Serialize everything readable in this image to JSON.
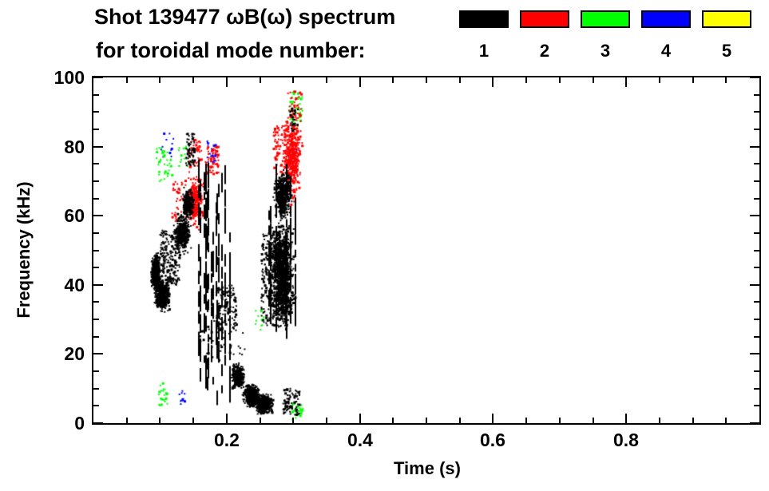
{
  "title": {
    "line1": "Shot 139477 ωB(ω) spectrum",
    "line2": "for toroidal mode number:"
  },
  "legend": {
    "modes": [
      {
        "label": "1",
        "color": "#000000"
      },
      {
        "label": "2",
        "color": "#ff0000"
      },
      {
        "label": "3",
        "color": "#00ff00"
      },
      {
        "label": "4",
        "color": "#0000ff"
      },
      {
        "label": "5",
        "color": "#ffff00"
      }
    ]
  },
  "chart_data": {
    "type": "scatter",
    "title": "Shot 139477 ωB(ω) spectrum for toroidal mode number: 1 2 3 4 5",
    "xlabel": "Time (s)",
    "ylabel": "Frequency (kHz)",
    "xlim": [
      0,
      1
    ],
    "ylim": [
      0,
      100
    ],
    "xticks": [
      0.2,
      0.4,
      0.6,
      0.8
    ],
    "xtick_labels": [
      "0.2",
      "0.4",
      "0.6",
      "0.8"
    ],
    "yticks": [
      0,
      20,
      40,
      60,
      80,
      100
    ],
    "ytick_labels": [
      "0",
      "20",
      "40",
      "60",
      "80",
      "100"
    ],
    "x_minor": 0.05,
    "y_minor": 5,
    "grid": false,
    "legend_position": "top-right",
    "series": [
      {
        "name": "1",
        "color": "#000000",
        "clusters": [
          {
            "style": "blob",
            "t": [
              0.085,
              0.102
            ],
            "f": [
              37,
              50
            ],
            "n": 450,
            "seed": 11
          },
          {
            "style": "blob",
            "t": [
              0.09,
              0.118
            ],
            "f": [
              32,
              42
            ],
            "n": 500,
            "seed": 12
          },
          {
            "style": "sparse",
            "t": [
              0.1,
              0.13
            ],
            "f": [
              40,
              56
            ],
            "n": 200,
            "seed": 13
          },
          {
            "style": "blob",
            "t": [
              0.118,
              0.148
            ],
            "f": [
              48,
              62
            ],
            "n": 320,
            "seed": 14
          },
          {
            "style": "blob",
            "t": [
              0.132,
              0.152
            ],
            "f": [
              58,
              69
            ],
            "n": 260,
            "seed": 15
          },
          {
            "style": "sparse",
            "t": [
              0.138,
              0.152
            ],
            "f": [
              74,
              84
            ],
            "n": 60,
            "seed": 16
          },
          {
            "style": "streaks",
            "t": [
              0.152,
              0.175
            ],
            "f": [
              8,
              78
            ],
            "n": 7,
            "seed": 17
          },
          {
            "style": "streaks",
            "t": [
              0.176,
              0.205
            ],
            "f": [
              4,
              76
            ],
            "n": 9,
            "seed": 18
          },
          {
            "style": "sparse",
            "t": [
              0.185,
              0.215
            ],
            "f": [
              26,
              40
            ],
            "n": 120,
            "seed": 19
          },
          {
            "style": "blob",
            "t": [
              0.205,
              0.23
            ],
            "f": [
              9,
              18
            ],
            "n": 300,
            "seed": 20
          },
          {
            "style": "blob",
            "t": [
              0.222,
              0.252
            ],
            "f": [
              4,
              12
            ],
            "n": 420,
            "seed": 21
          },
          {
            "style": "blob",
            "t": [
              0.24,
              0.272
            ],
            "f": [
              2,
              9
            ],
            "n": 450,
            "seed": 22
          },
          {
            "style": "sparse",
            "t": [
              0.252,
              0.285
            ],
            "f": [
              28,
              55
            ],
            "n": 220,
            "seed": 23
          },
          {
            "style": "blob",
            "t": [
              0.262,
              0.305
            ],
            "f": [
              24,
              62
            ],
            "n": 1200,
            "seed": 24
          },
          {
            "style": "streaks",
            "t": [
              0.262,
              0.305
            ],
            "f": [
              20,
              70
            ],
            "n": 10,
            "seed": 25
          },
          {
            "style": "blob",
            "t": [
              0.268,
              0.3
            ],
            "f": [
              58,
              74
            ],
            "n": 420,
            "seed": 26
          },
          {
            "style": "sparse",
            "t": [
              0.16,
              0.23
            ],
            "f": [
              18,
              30
            ],
            "n": 40,
            "seed": 27
          },
          {
            "style": "sparse",
            "t": [
              0.285,
              0.31
            ],
            "f": [
              2,
              10
            ],
            "n": 90,
            "seed": 28
          },
          {
            "style": "sparse",
            "t": [
              0.295,
              0.308
            ],
            "f": [
              84,
              92
            ],
            "n": 25,
            "seed": 29
          }
        ]
      },
      {
        "name": "2",
        "color": "#ff0000",
        "clusters": [
          {
            "style": "blob",
            "t": [
              0.135,
              0.168
            ],
            "f": [
              54,
              74
            ],
            "n": 260,
            "seed": 31
          },
          {
            "style": "sparse",
            "t": [
              0.143,
              0.162
            ],
            "f": [
              74,
              82
            ],
            "n": 45,
            "seed": 32
          },
          {
            "style": "sparse",
            "t": [
              0.168,
              0.188
            ],
            "f": [
              72,
              80
            ],
            "n": 55,
            "seed": 33
          },
          {
            "style": "sparse",
            "t": [
              0.118,
              0.134
            ],
            "f": [
              58,
              70
            ],
            "n": 35,
            "seed": 34
          },
          {
            "style": "blob",
            "t": [
              0.282,
              0.315
            ],
            "f": [
              62,
              92
            ],
            "n": 420,
            "seed": 35
          },
          {
            "style": "sparse",
            "t": [
              0.27,
              0.292
            ],
            "f": [
              72,
              86
            ],
            "n": 90,
            "seed": 36
          },
          {
            "style": "sparse",
            "t": [
              0.292,
              0.312
            ],
            "f": [
              88,
              96
            ],
            "n": 35,
            "seed": 37
          }
        ]
      },
      {
        "name": "3",
        "color": "#00ff00",
        "clusters": [
          {
            "style": "sparse",
            "t": [
              0.094,
              0.118
            ],
            "f": [
              70,
              80
            ],
            "n": 40,
            "seed": 41
          },
          {
            "style": "sparse",
            "t": [
              0.098,
              0.112
            ],
            "f": [
              5,
              12
            ],
            "n": 22,
            "seed": 42
          },
          {
            "style": "sparse",
            "t": [
              0.128,
              0.142
            ],
            "f": [
              74,
              80
            ],
            "n": 14,
            "seed": 43
          },
          {
            "style": "sparse",
            "t": [
              0.294,
              0.314
            ],
            "f": [
              86,
              96
            ],
            "n": 45,
            "seed": 44
          },
          {
            "style": "sparse",
            "t": [
              0.298,
              0.315
            ],
            "f": [
              1,
              6
            ],
            "n": 28,
            "seed": 45
          },
          {
            "style": "sparse",
            "t": [
              0.243,
              0.256
            ],
            "f": [
              27,
              33
            ],
            "n": 12,
            "seed": 46
          }
        ]
      },
      {
        "name": "4",
        "color": "#0000ff",
        "clusters": [
          {
            "style": "sparse",
            "t": [
              0.17,
              0.184
            ],
            "f": [
              75,
              82
            ],
            "n": 22,
            "seed": 51
          },
          {
            "style": "sparse",
            "t": [
              0.1,
              0.122
            ],
            "f": [
              77,
              84
            ],
            "n": 12,
            "seed": 52
          },
          {
            "style": "sparse",
            "t": [
              0.293,
              0.306
            ],
            "f": [
              75,
              80
            ],
            "n": 12,
            "seed": 53
          },
          {
            "style": "sparse",
            "t": [
              0.126,
              0.138
            ],
            "f": [
              5,
              10
            ],
            "n": 10,
            "seed": 54
          }
        ]
      },
      {
        "name": "5",
        "color": "#ffff00",
        "clusters": []
      }
    ]
  }
}
